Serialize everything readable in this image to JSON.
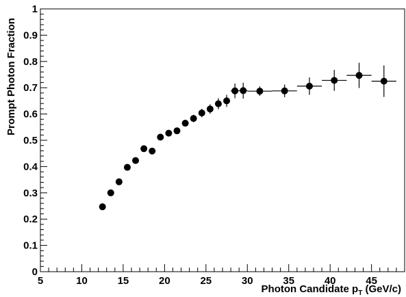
{
  "chart_data": {
    "type": "scatter",
    "title": "",
    "xlabel": "Photon Candidate p",
    "xlabel_sub": "T",
    "xlabel_unit": " (GeV/c)",
    "ylabel": "Prompt Photon Fraction",
    "xlim": [
      5,
      49
    ],
    "ylim": [
      0,
      1
    ],
    "grid": false,
    "x_ticks": [
      5,
      10,
      15,
      20,
      25,
      30,
      35,
      40,
      45
    ],
    "y_ticks": [
      0,
      0.1,
      0.2,
      0.3,
      0.4,
      0.5,
      0.6,
      0.7,
      0.8,
      0.9,
      1
    ],
    "x_tick_labels": [
      "5",
      "10",
      "15",
      "20",
      "25",
      "30",
      "35",
      "40",
      "45"
    ],
    "y_tick_labels": [
      "0",
      "0.1",
      "0.2",
      "0.3",
      "0.4",
      "0.5",
      "0.6",
      "0.7",
      "0.8",
      "0.9",
      "1"
    ],
    "points": [
      {
        "x": 12.5,
        "y": 0.247,
        "xerr": 0,
        "yerr": 0
      },
      {
        "x": 13.5,
        "y": 0.3,
        "xerr": 0,
        "yerr": 0
      },
      {
        "x": 14.5,
        "y": 0.342,
        "xerr": 0,
        "yerr": 0
      },
      {
        "x": 15.5,
        "y": 0.397,
        "xerr": 0,
        "yerr": 0
      },
      {
        "x": 16.5,
        "y": 0.423,
        "xerr": 0,
        "yerr": 0
      },
      {
        "x": 17.5,
        "y": 0.468,
        "xerr": 0,
        "yerr": 0
      },
      {
        "x": 18.5,
        "y": 0.459,
        "xerr": 0,
        "yerr": 0
      },
      {
        "x": 19.5,
        "y": 0.512,
        "xerr": 0,
        "yerr": 0
      },
      {
        "x": 20.5,
        "y": 0.527,
        "xerr": 0,
        "yerr": 0
      },
      {
        "x": 21.5,
        "y": 0.536,
        "xerr": 0,
        "yerr": 0.008
      },
      {
        "x": 22.5,
        "y": 0.565,
        "xerr": 0,
        "yerr": 0.012
      },
      {
        "x": 23.5,
        "y": 0.583,
        "xerr": 0,
        "yerr": 0.014
      },
      {
        "x": 24.5,
        "y": 0.604,
        "xerr": 0,
        "yerr": 0.016
      },
      {
        "x": 25.5,
        "y": 0.619,
        "xerr": 0,
        "yerr": 0.018
      },
      {
        "x": 26.5,
        "y": 0.639,
        "xerr": 0,
        "yerr": 0.021
      },
      {
        "x": 27.5,
        "y": 0.65,
        "xerr": 0,
        "yerr": 0.023
      },
      {
        "x": 28.5,
        "y": 0.688,
        "xerr": 0.5,
        "yerr": 0.028
      },
      {
        "x": 29.5,
        "y": 0.689,
        "xerr": 0.5,
        "yerr": 0.03
      },
      {
        "x": 31.5,
        "y": 0.687,
        "xerr": 1.5,
        "yerr": 0.018
      },
      {
        "x": 34.5,
        "y": 0.688,
        "xerr": 1.5,
        "yerr": 0.024
      },
      {
        "x": 37.5,
        "y": 0.706,
        "xerr": 1.5,
        "yerr": 0.033
      },
      {
        "x": 40.5,
        "y": 0.728,
        "xerr": 1.5,
        "yerr": 0.04
      },
      {
        "x": 43.5,
        "y": 0.747,
        "xerr": 1.5,
        "yerr": 0.048
      },
      {
        "x": 46.5,
        "y": 0.725,
        "xerr": 1.5,
        "yerr": 0.06
      }
    ]
  }
}
